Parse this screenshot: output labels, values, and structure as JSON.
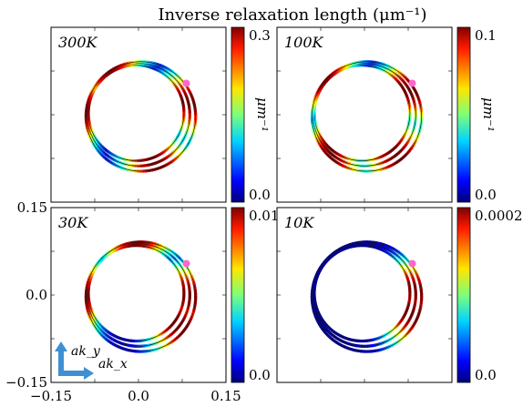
{
  "chart_data": {
    "type": "colormap-contour",
    "title": "Inverse relaxation length (μm⁻¹)",
    "xlabel": "ak_x",
    "ylabel": "ak_y",
    "xlim": [
      -0.15,
      0.15
    ],
    "ylim": [
      -0.15,
      0.15
    ],
    "x_ticks": [
      "−0.15",
      "0.0",
      "0.15"
    ],
    "y_ticks": [
      "0.15",
      "0.0",
      "−0.15"
    ],
    "colorbar_label": "μm⁻¹",
    "colormap": "jet",
    "marker_color": "#ff66cc",
    "ring_radii": [
      0.082,
      0.088,
      0.094
    ],
    "marker": {
      "x": 0.082,
      "y": 0.054
    },
    "panels": [
      {
        "temperature": "300K",
        "cbar_min": "0.0",
        "cbar_max": "0.3",
        "hot_angles": [
          -70,
          15,
          125,
          175
        ]
      },
      {
        "temperature": "100K",
        "cbar_min": "0.0",
        "cbar_max": "0.1",
        "hot_angles": [
          -50,
          30,
          140,
          230
        ]
      },
      {
        "temperature": "30K",
        "cbar_min": "0.0",
        "cbar_max": "0.01",
        "hot_angles": [
          -35,
          0,
          95,
          180
        ]
      },
      {
        "temperature": "10K",
        "cbar_min": "0.0",
        "cbar_max": "0.0002",
        "hot_angles": [
          -20,
          5
        ]
      }
    ]
  }
}
